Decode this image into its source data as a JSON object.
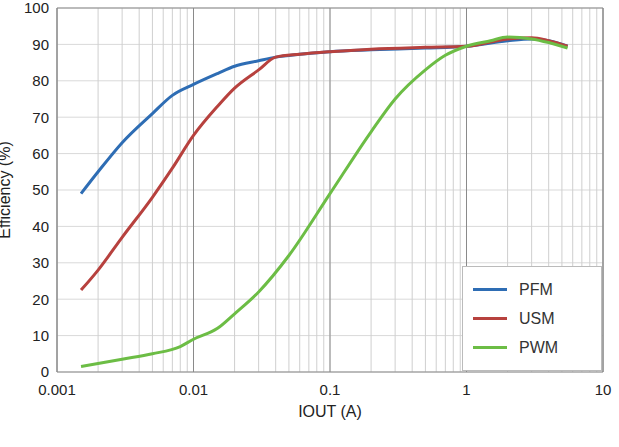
{
  "chart_data": {
    "type": "line",
    "x_label": "IOUT (A)",
    "y_label": "Efficiency (%)",
    "log": "x",
    "grid": true,
    "legend": "lower right",
    "xlim": [
      0.001,
      10
    ],
    "xticks": [
      0.001,
      0.01,
      0.1,
      1,
      10
    ],
    "ylim": [
      0,
      100
    ],
    "yticks": [
      0,
      10,
      20,
      30,
      40,
      50,
      60,
      70,
      80,
      90,
      100
    ],
    "series": [
      {
        "name": "PFM",
        "color": "#2e6db4",
        "x": [
          0.0015,
          0.002,
          0.003,
          0.005,
          0.007,
          0.01,
          0.015,
          0.02,
          0.03,
          0.04,
          0.06,
          0.1,
          0.2,
          0.5,
          1,
          2,
          3,
          4,
          5.5
        ],
        "values": [
          49,
          55,
          63,
          71,
          76,
          79,
          82,
          84,
          85.5,
          86.5,
          87.3,
          88,
          88.5,
          89,
          89.5,
          91,
          91.5,
          91,
          89.5
        ]
      },
      {
        "name": "USM",
        "color": "#b7413e",
        "x": [
          0.0015,
          0.002,
          0.003,
          0.005,
          0.007,
          0.01,
          0.015,
          0.02,
          0.03,
          0.04,
          0.06,
          0.1,
          0.2,
          0.5,
          1,
          2,
          3,
          4,
          5.5
        ],
        "values": [
          22.5,
          28,
          37,
          48,
          56,
          65,
          73,
          78,
          83,
          86.5,
          87.3,
          88,
          88.7,
          89.2,
          89.5,
          91.5,
          91.8,
          91,
          89.5
        ]
      },
      {
        "name": "PWM",
        "color": "#6cbd45",
        "x": [
          0.0015,
          0.003,
          0.005,
          0.008,
          0.01,
          0.015,
          0.02,
          0.03,
          0.05,
          0.1,
          0.2,
          0.3,
          0.5,
          0.7,
          1,
          1.5,
          2,
          3,
          4,
          5.5
        ],
        "values": [
          1.5,
          3.5,
          5,
          7,
          9,
          12,
          16,
          22,
          32,
          49,
          66,
          75,
          83,
          87,
          89.5,
          91,
          92,
          91.5,
          90.5,
          89
        ]
      }
    ]
  }
}
